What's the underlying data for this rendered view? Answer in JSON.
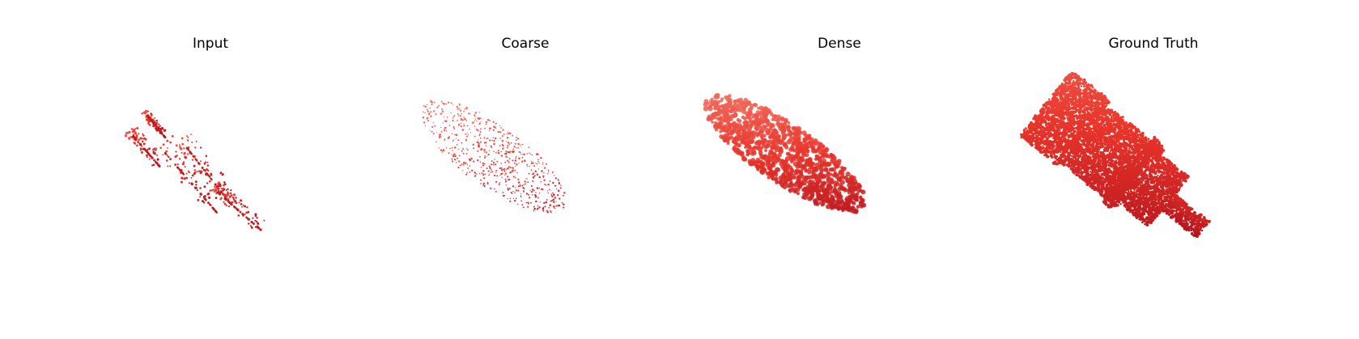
{
  "panels": [
    {
      "title": "Input",
      "style": "sparse-ridged"
    },
    {
      "title": "Coarse",
      "style": "sparse-ellipse"
    },
    {
      "title": "Dense",
      "style": "dense-ellipse"
    },
    {
      "title": "Ground Truth",
      "style": "bottle-solid"
    }
  ],
  "colors": {
    "point_light": "#f47a6a",
    "point_mid": "#e8352b",
    "point_dark": "#b3121c",
    "background": "#ffffff",
    "title": "#000000"
  }
}
